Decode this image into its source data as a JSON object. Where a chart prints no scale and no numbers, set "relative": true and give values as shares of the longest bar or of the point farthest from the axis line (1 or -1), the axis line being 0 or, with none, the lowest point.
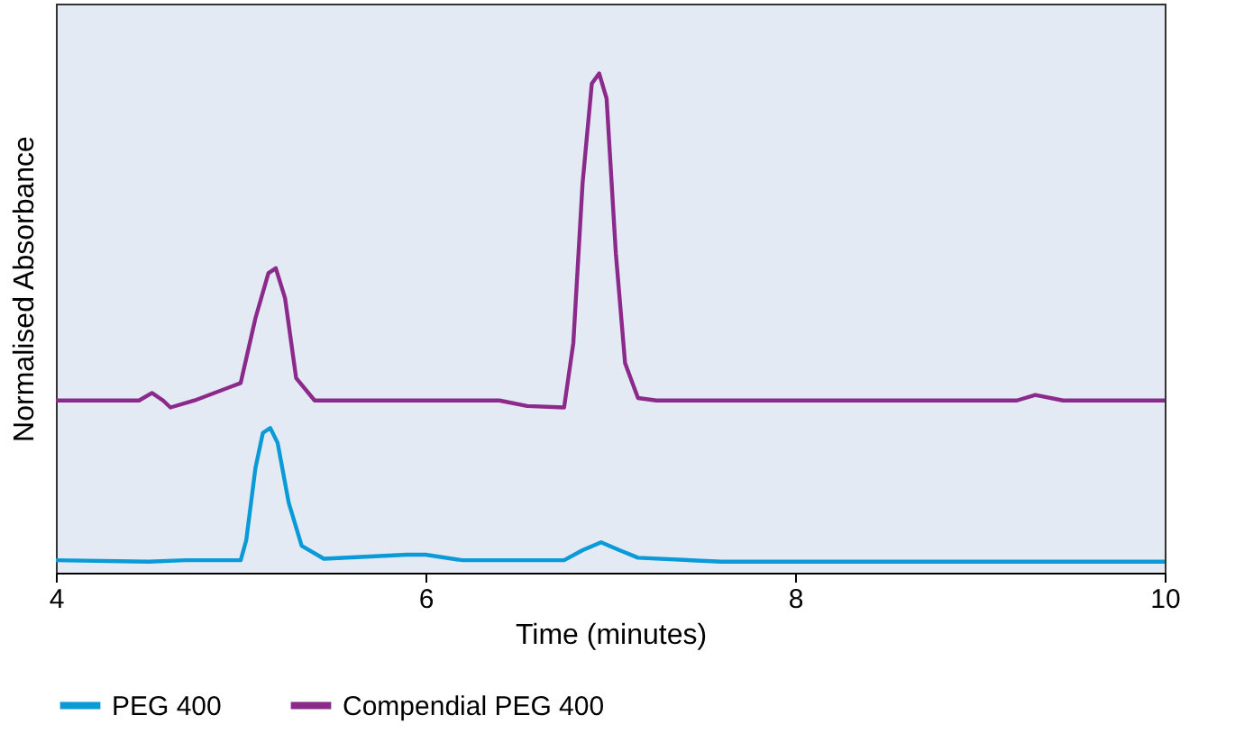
{
  "chart_data": {
    "type": "line",
    "relative": true,
    "xlabel": "Time (minutes)",
    "ylabel": "Normalised Absorbance",
    "xlim": [
      4,
      10
    ],
    "xticks": [
      4,
      6,
      8,
      10
    ],
    "legend": "bottom left",
    "grid": false,
    "marker": "none",
    "line_style": "solid",
    "series": [
      {
        "name": "PEG 400",
        "color": "#0a9ad7",
        "x": [
          4,
          4.5,
          4.7,
          5.0,
          5.03,
          5.08,
          5.12,
          5.16,
          5.2,
          5.26,
          5.33,
          5.45,
          5.9,
          6.0,
          6.2,
          6.75,
          6.85,
          6.95,
          7.05,
          7.15,
          7.6,
          10
        ],
        "values": [
          0.025,
          0.022,
          0.025,
          0.025,
          0.065,
          0.21,
          0.28,
          0.29,
          0.26,
          0.14,
          0.054,
          0.028,
          0.036,
          0.036,
          0.025,
          0.025,
          0.045,
          0.061,
          0.045,
          0.03,
          0.022,
          0.022
        ]
      },
      {
        "name": "Compendial PEG 400",
        "color": "#8b2a8b",
        "x": [
          4,
          4.45,
          4.52,
          4.58,
          4.62,
          4.75,
          5.0,
          5.08,
          5.15,
          5.19,
          5.24,
          5.3,
          5.4,
          6.4,
          6.55,
          6.75,
          6.8,
          6.85,
          6.9,
          6.94,
          6.98,
          7.03,
          7.08,
          7.15,
          7.25,
          9.2,
          9.3,
          9.45,
          10
        ],
        "values": [
          0.345,
          0.345,
          0.36,
          0.345,
          0.331,
          0.345,
          0.38,
          0.51,
          0.6,
          0.61,
          0.55,
          0.39,
          0.345,
          0.345,
          0.334,
          0.331,
          0.46,
          0.78,
          0.98,
          1.0,
          0.95,
          0.64,
          0.42,
          0.35,
          0.345,
          0.345,
          0.356,
          0.345,
          0.345
        ]
      }
    ]
  }
}
